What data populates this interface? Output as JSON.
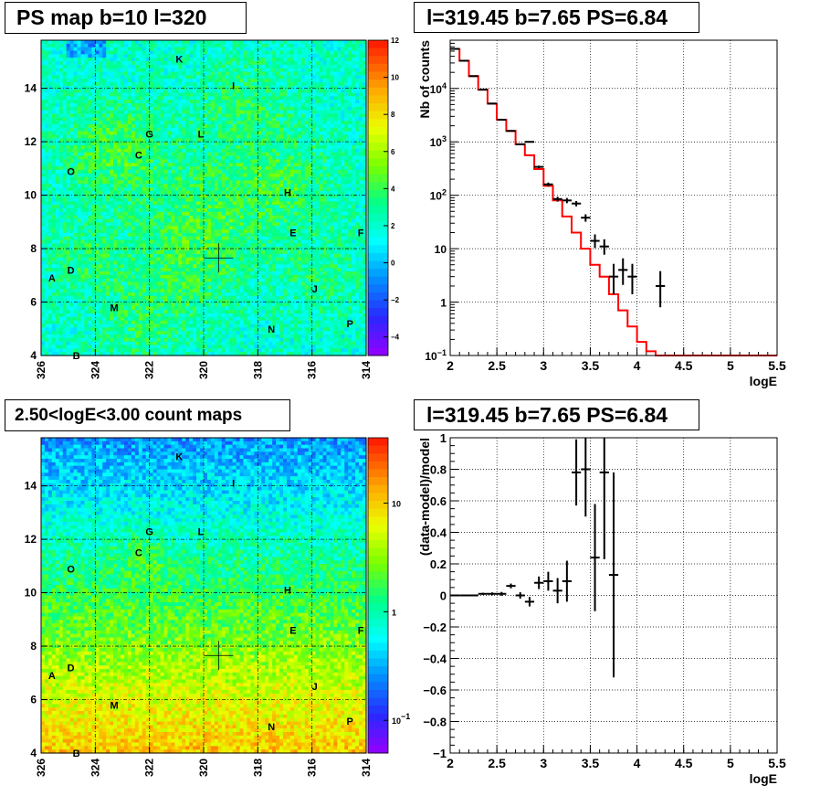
{
  "chart_data": [
    {
      "type": "heatmap",
      "title": "PS map b=10 l=320",
      "xlim": [
        326,
        314
      ],
      "ylim": [
        4,
        15.8
      ],
      "x_ticks": [
        "326",
        "324",
        "322",
        "320",
        "318",
        "316",
        "314"
      ],
      "y_ticks": [
        "4",
        "6",
        "8",
        "10",
        "12",
        "14"
      ],
      "colorbar": {
        "scale": "linear",
        "min": -5,
        "max": 12,
        "ticks": [
          "12",
          "10",
          "8",
          "6",
          "4",
          "2",
          "0",
          "−2",
          "−4"
        ]
      },
      "marker": {
        "l": 319.45,
        "b": 7.65
      },
      "grid": true,
      "sources": [
        {
          "label": "K",
          "l": 320.9,
          "b": 15.1
        },
        {
          "label": "I",
          "l": 318.9,
          "b": 14.1
        },
        {
          "label": "G",
          "l": 322.0,
          "b": 12.3
        },
        {
          "label": "L",
          "l": 320.1,
          "b": 12.3
        },
        {
          "label": "C",
          "l": 322.4,
          "b": 11.5
        },
        {
          "label": "O",
          "l": 324.9,
          "b": 10.9
        },
        {
          "label": "H",
          "l": 316.9,
          "b": 10.1
        },
        {
          "label": "E",
          "l": 316.7,
          "b": 8.6
        },
        {
          "label": "F",
          "l": 314.2,
          "b": 8.6
        },
        {
          "label": "D",
          "l": 324.9,
          "b": 7.2
        },
        {
          "label": "A",
          "l": 325.6,
          "b": 6.9
        },
        {
          "label": "J",
          "l": 315.9,
          "b": 6.5
        },
        {
          "label": "M",
          "l": 323.3,
          "b": 5.8
        },
        {
          "label": "P",
          "l": 314.6,
          "b": 5.2
        },
        {
          "label": "N",
          "l": 317.5,
          "b": 5.0
        },
        {
          "label": "B",
          "l": 324.7,
          "b": 4.0
        }
      ]
    },
    {
      "type": "line",
      "title": "l=319.45 b=7.65 PS=6.84",
      "xlabel": "logE",
      "ylabel": "Nb of counts",
      "xlim": [
        2,
        5.5
      ],
      "ylim": [
        0.1,
        80000
      ],
      "yscale": "log",
      "grid": true,
      "x_ticks": [
        "2",
        "2.5",
        "3",
        "3.5",
        "4",
        "4.5",
        "5",
        "5.5"
      ],
      "y_ticks": [
        {
          "value": 0.1,
          "label": "10",
          "exp": "−1"
        },
        {
          "value": 1,
          "label": "1",
          "exp": ""
        },
        {
          "value": 10,
          "label": "10",
          "exp": ""
        },
        {
          "value": 100,
          "label": "10",
          "exp": "2"
        },
        {
          "value": 1000,
          "label": "10",
          "exp": "3"
        },
        {
          "value": 10000,
          "label": "10",
          "exp": "4"
        }
      ],
      "series": [
        {
          "color": "#ff0000",
          "style": "histogram",
          "bin_width": 0.1,
          "x": [
            2.05,
            2.15,
            2.25,
            2.35,
            2.45,
            2.55,
            2.65,
            2.75,
            2.85,
            2.95,
            3.05,
            3.15,
            3.25,
            3.35,
            3.45,
            3.55,
            3.65,
            3.75,
            3.85,
            3.95,
            4.05,
            4.15,
            4.25,
            4.35,
            4.45,
            4.55,
            4.65,
            4.75,
            4.85,
            4.95,
            5.05,
            5.15,
            5.25,
            5.35,
            5.45
          ],
          "y": [
            55000,
            33000,
            17000,
            9500,
            5200,
            2600,
            1600,
            900,
            560,
            310,
            150,
            80,
            40,
            20,
            10,
            5,
            3,
            1.4,
            0.7,
            0.35,
            0.18,
            0.12,
            0.1,
            0.1,
            0.1,
            0.1,
            0.1,
            0.1,
            0.1,
            0.1,
            0.1,
            0.1,
            0.1,
            0.1,
            0.1
          ]
        },
        {
          "color": "#000000",
          "style": "errorbar",
          "x": [
            2.05,
            2.15,
            2.25,
            2.35,
            2.45,
            2.55,
            2.65,
            2.75,
            2.85,
            2.95,
            3.05,
            3.15,
            3.25,
            3.35,
            3.45,
            3.55,
            3.65,
            3.75,
            3.85,
            3.95,
            4.25
          ],
          "y": [
            55000,
            33000,
            17000,
            9500,
            5200,
            2600,
            1600,
            900,
            1000,
            340,
            160,
            85,
            80,
            70,
            38,
            14,
            11,
            3,
            4,
            3,
            2
          ],
          "yerr_lo": [
            230,
            180,
            130,
            97,
            72,
            51,
            40,
            30,
            31,
            18,
            13,
            9,
            9,
            8,
            6,
            3.7,
            3.3,
            1.6,
            1.9,
            1.6,
            1.2
          ],
          "yerr_hi": [
            230,
            180,
            130,
            97,
            72,
            51,
            40,
            30,
            31,
            18,
            13,
            9,
            9,
            8,
            6,
            4.5,
            4,
            2.2,
            2.6,
            2.2,
            1.8
          ]
        }
      ]
    },
    {
      "type": "heatmap",
      "title": "2.50<logE<3.00 count maps",
      "xlim": [
        326,
        314
      ],
      "ylim": [
        4,
        15.8
      ],
      "x_ticks": [
        "326",
        "324",
        "322",
        "320",
        "318",
        "316",
        "314"
      ],
      "y_ticks": [
        "4",
        "6",
        "8",
        "10",
        "12",
        "14"
      ],
      "colorbar": {
        "scale": "log",
        "min": 0.05,
        "max": 40,
        "ticks": [
          {
            "value": 10,
            "label": "10",
            "exp": ""
          },
          {
            "value": 1,
            "label": "1",
            "exp": ""
          },
          {
            "value": 0.1,
            "label": "10",
            "exp": "−1"
          }
        ]
      },
      "marker": {
        "l": 319.45,
        "b": 7.65
      },
      "grid": true,
      "sources": [
        {
          "label": "K",
          "l": 320.9,
          "b": 15.1
        },
        {
          "label": "I",
          "l": 318.9,
          "b": 14.1
        },
        {
          "label": "G",
          "l": 322.0,
          "b": 12.3
        },
        {
          "label": "L",
          "l": 320.1,
          "b": 12.3
        },
        {
          "label": "C",
          "l": 322.4,
          "b": 11.5
        },
        {
          "label": "O",
          "l": 324.9,
          "b": 10.9
        },
        {
          "label": "H",
          "l": 316.9,
          "b": 10.1
        },
        {
          "label": "E",
          "l": 316.7,
          "b": 8.6
        },
        {
          "label": "F",
          "l": 314.2,
          "b": 8.6
        },
        {
          "label": "D",
          "l": 324.9,
          "b": 7.2
        },
        {
          "label": "A",
          "l": 325.6,
          "b": 6.9
        },
        {
          "label": "J",
          "l": 315.9,
          "b": 6.5
        },
        {
          "label": "M",
          "l": 323.3,
          "b": 5.8
        },
        {
          "label": "P",
          "l": 314.6,
          "b": 5.2
        },
        {
          "label": "N",
          "l": 317.5,
          "b": 5.0
        },
        {
          "label": "B",
          "l": 324.7,
          "b": 4.0
        }
      ]
    },
    {
      "type": "scatter",
      "title": "l=319.45 b=7.65 PS=6.84",
      "xlabel": "logE",
      "ylabel": "(data-model)/model",
      "xlim": [
        2,
        5.5
      ],
      "ylim": [
        -1,
        1
      ],
      "grid": true,
      "x_ticks": [
        "2",
        "2.5",
        "3",
        "3.5",
        "4",
        "4.5",
        "5",
        "5.5"
      ],
      "y_ticks": [
        "1",
        "0.8",
        "0.6",
        "0.4",
        "0.2",
        "0",
        "−0.2",
        "−0.4",
        "−0.6",
        "−0.8",
        "−1"
      ],
      "series": [
        {
          "color": "#000000",
          "style": "errorbar",
          "x": [
            2.05,
            2.15,
            2.25,
            2.35,
            2.45,
            2.55,
            2.65,
            2.75,
            2.85,
            2.95,
            3.05,
            3.15,
            3.25,
            3.35,
            3.45,
            3.55,
            3.65,
            3.75
          ],
          "y": [
            0.0,
            0.0,
            0.0,
            0.01,
            0.01,
            0.01,
            0.06,
            0.0,
            -0.04,
            0.08,
            0.09,
            0.03,
            0.09,
            0.78,
            0.8,
            0.24,
            0.78,
            0.13
          ],
          "yerr": [
            0.003,
            0.004,
            0.005,
            0.007,
            0.009,
            0.012,
            0.015,
            0.02,
            0.03,
            0.04,
            0.06,
            0.08,
            0.13,
            0.21,
            0.3,
            0.34,
            0.55,
            0.65
          ]
        }
      ]
    }
  ]
}
